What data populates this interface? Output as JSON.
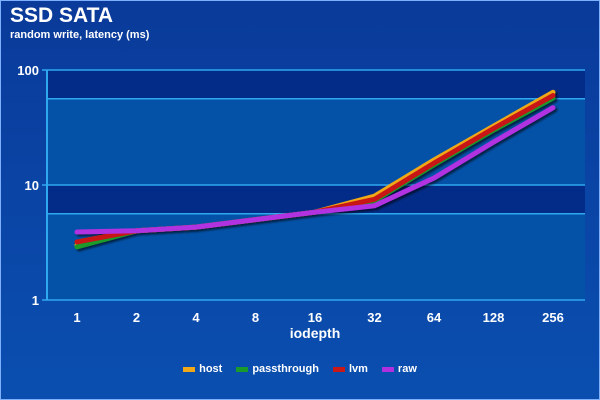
{
  "title": "SSD SATA",
  "subtitle": "random write, latency (ms)",
  "chart_data": {
    "type": "line",
    "title": "SSD SATA",
    "subtitle": "random write, latency (ms)",
    "xlabel": "iodepth",
    "ylabel": "",
    "yscale": "log",
    "ylim": [
      1,
      100
    ],
    "yticks": [
      "1",
      "10",
      "100"
    ],
    "categories": [
      "1",
      "2",
      "4",
      "8",
      "16",
      "32",
      "64",
      "128",
      "256"
    ],
    "legend_position": "bottom",
    "series": [
      {
        "name": "host",
        "color": "#f0a818",
        "values": [
          3.0,
          4.0,
          4.3,
          5.0,
          5.8,
          8.0,
          16.5,
          32.5,
          64
        ]
      },
      {
        "name": "passthrough",
        "color": "#1a9a2a",
        "values": [
          2.9,
          4.0,
          4.3,
          5.0,
          5.8,
          7.3,
          15,
          30,
          57
        ]
      },
      {
        "name": "lvm",
        "color": "#c81818",
        "values": [
          3.2,
          4.0,
          4.3,
          5.0,
          5.8,
          7.5,
          15.5,
          31,
          60
        ]
      },
      {
        "name": "raw",
        "color": "#b030e0",
        "values": [
          3.9,
          4.0,
          4.3,
          5.0,
          5.8,
          6.6,
          11.5,
          23.6,
          47
        ]
      }
    ]
  }
}
